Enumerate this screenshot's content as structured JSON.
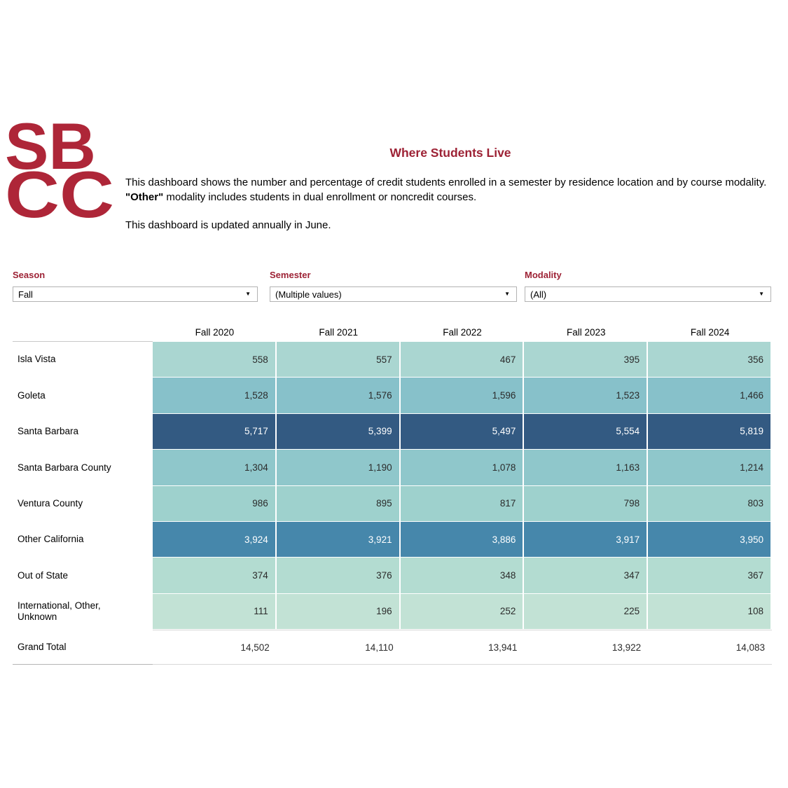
{
  "theme": {
    "maroon": "#9d2235",
    "brand_red": "#ae2638",
    "text": "#000000",
    "cell_text_dark": "#2b2b2b",
    "border_gray": "#b3b3b3",
    "light_line": "#c9c9c9",
    "mid_line": "#b5b5b5",
    "faint_line": "#d8d8d8"
  },
  "logo": {
    "line1": "SB",
    "line2": "CC",
    "color": "#ae2638"
  },
  "header": {
    "title": "Where Students Live",
    "description": {
      "text1": "This dashboard shows the number and percentage of credit students enrolled in a semester by residence location and by course modality.  ",
      "bold": "\"Other\"",
      "text2": " modality includes students in dual enrollment or noncredit courses."
    },
    "update_note": "This dashboard is updated annually in June."
  },
  "filters": {
    "caret_glyph": "▼",
    "season": {
      "label": "Season",
      "value": "Fall"
    },
    "semester": {
      "label": "Semester",
      "value": "(Multiple values)"
    },
    "modality": {
      "label": "Modality",
      "value": "(All)"
    }
  },
  "chart_data": {
    "type": "table",
    "title": "Where Students Live",
    "columns": [
      "Fall 2020",
      "Fall 2021",
      "Fall 2022",
      "Fall 2023",
      "Fall 2024"
    ],
    "rows": [
      {
        "label": "Isla Vista",
        "values": [
          558,
          557,
          467,
          395,
          356
        ],
        "bg": "#aad6d1",
        "fg": "#2b2b2b"
      },
      {
        "label": "Goleta",
        "values": [
          1528,
          1576,
          1596,
          1523,
          1466
        ],
        "bg": "#87c1ca",
        "fg": "#2b2b2b"
      },
      {
        "label": "Santa Barbara",
        "values": [
          5717,
          5399,
          5497,
          5554,
          5819
        ],
        "bg": "#335a82",
        "fg": "#ffffff"
      },
      {
        "label": "Santa Barbara County",
        "values": [
          1304,
          1190,
          1078,
          1163,
          1214
        ],
        "bg": "#8fc7cb",
        "fg": "#2b2b2b"
      },
      {
        "label": "Ventura County",
        "values": [
          986,
          895,
          817,
          798,
          803
        ],
        "bg": "#9ed1cd",
        "fg": "#2b2b2b"
      },
      {
        "label": "Other California",
        "values": [
          3924,
          3921,
          3886,
          3917,
          3950
        ],
        "bg": "#4687ab",
        "fg": "#ffffff"
      },
      {
        "label": "Out of State",
        "values": [
          374,
          376,
          348,
          347,
          367
        ],
        "bg": "#b3dcd1",
        "fg": "#2b2b2b"
      },
      {
        "label": "International, Other, Unknown",
        "values": [
          111,
          196,
          252,
          225,
          108
        ],
        "bg": "#c2e2d5",
        "fg": "#2b2b2b"
      }
    ],
    "grand_total": {
      "label": "Grand Total",
      "values": [
        14502,
        14110,
        13941,
        13922,
        14083
      ]
    },
    "number_format": "thousands-comma",
    "legend_position": "none",
    "grid": "white-cell-separators"
  }
}
